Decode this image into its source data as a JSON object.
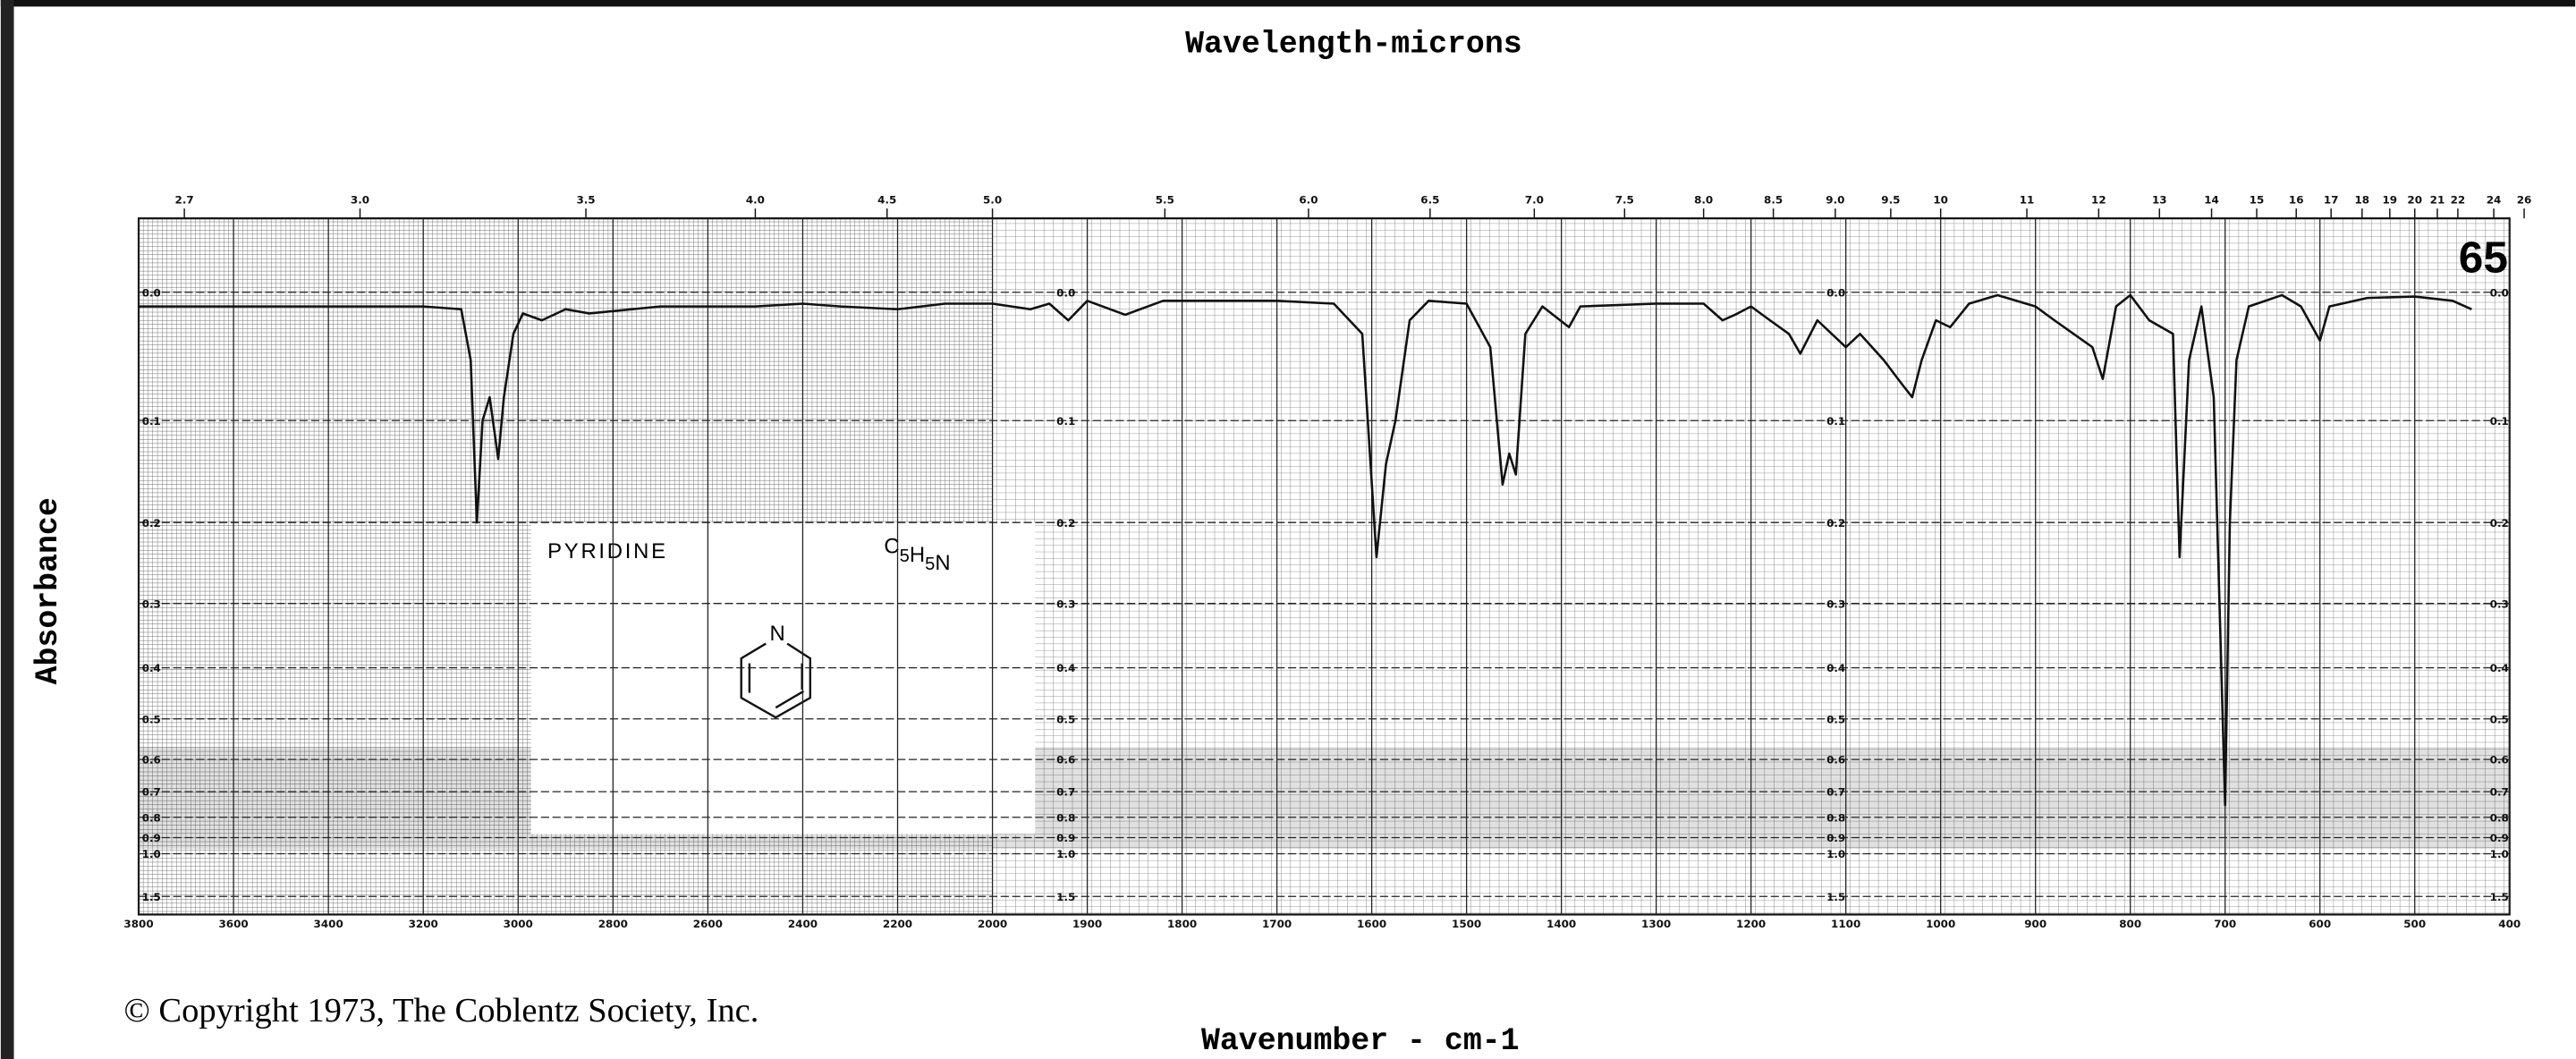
{
  "chart_data": {
    "type": "line",
    "title": "Wavelength-microns",
    "x_label": "Wavenumber - cm-1",
    "y_label": "Absorbance",
    "spectrum_number": "65",
    "compound": "PYRIDINE",
    "formula": "C5H5N",
    "structure_atom": "N",
    "copyright": "© Copyright 1973, The Coblentz Society, Inc.",
    "color": "#111111",
    "grid": true,
    "y_scale": "absorbance",
    "xlim": [
      3800,
      400
    ],
    "x_scale_change_at": 2000,
    "xticks": [
      3800,
      3600,
      3400,
      3200,
      3000,
      2800,
      2600,
      2400,
      2200,
      2000,
      1900,
      1800,
      1700,
      1600,
      1500,
      1400,
      1300,
      1200,
      1100,
      1000,
      900,
      800,
      700,
      600,
      500,
      400
    ],
    "x2ticks": [
      2.7,
      {
        "value": 3,
        "label": "3.0"
      },
      3.5,
      {
        "value": 4,
        "label": "4.0"
      },
      4.5,
      {
        "value": 5,
        "label": "5.0"
      },
      5.5,
      {
        "value": 6,
        "label": "6.0"
      },
      6.5,
      {
        "value": 7,
        "label": "7.0"
      },
      7.5,
      {
        "value": 8,
        "label": "8.0"
      },
      8.5,
      {
        "value": 9,
        "label": "9.0"
      },
      9.5,
      10,
      11,
      12,
      13,
      14,
      15,
      16,
      17,
      18,
      19,
      20,
      21,
      22,
      24,
      26
    ],
    "yticks": [
      {
        "value": 0,
        "label": "0.0"
      },
      0.1,
      0.2,
      0.3,
      0.4,
      0.5,
      0.6,
      0.7,
      0.8,
      0.9,
      {
        "value": 1,
        "label": "1.0"
      },
      1.5
    ],
    "x": [
      3800,
      3600,
      3400,
      3200,
      3120,
      3100,
      3087,
      3075,
      3060,
      3042,
      3030,
      3010,
      2990,
      2950,
      2900,
      2850,
      2700,
      2500,
      2400,
      2320,
      2200,
      2100,
      2000,
      1960,
      1940,
      1920,
      1900,
      1860,
      1820,
      1700,
      1640,
      1610,
      1595,
      1585,
      1575,
      1560,
      1540,
      1500,
      1475,
      1462,
      1455,
      1448,
      1438,
      1420,
      1392,
      1380,
      1300,
      1250,
      1230,
      1217,
      1200,
      1180,
      1160,
      1148,
      1130,
      1100,
      1085,
      1060,
      1040,
      1030,
      1020,
      1005,
      990,
      970,
      940,
      900,
      880,
      840,
      829,
      815,
      800,
      780,
      755,
      748,
      738,
      725,
      712,
      700,
      695,
      688,
      675,
      640,
      620,
      600,
      590,
      550,
      500,
      460,
      440
    ],
    "values": [
      0.01,
      0.01,
      0.01,
      0.01,
      0.012,
      0.05,
      0.2,
      0.1,
      0.08,
      0.135,
      0.08,
      0.03,
      0.015,
      0.02,
      0.012,
      0.015,
      0.01,
      0.01,
      0.008,
      0.01,
      0.012,
      0.008,
      0.008,
      0.012,
      0.008,
      0.02,
      0.006,
      0.016,
      0.006,
      0.006,
      0.008,
      0.03,
      0.24,
      0.14,
      0.1,
      0.02,
      0.006,
      0.008,
      0.04,
      0.16,
      0.13,
      0.15,
      0.03,
      0.01,
      0.025,
      0.01,
      0.008,
      0.008,
      0.02,
      0.016,
      0.01,
      0.02,
      0.03,
      0.045,
      0.02,
      0.04,
      0.03,
      0.05,
      0.07,
      0.08,
      0.05,
      0.02,
      0.025,
      0.008,
      0.002,
      0.01,
      0.02,
      0.04,
      0.065,
      0.01,
      0.002,
      0.02,
      0.03,
      0.24,
      0.05,
      0.01,
      0.08,
      0.75,
      0.2,
      0.05,
      0.01,
      0.002,
      0.01,
      0.035,
      0.01,
      0.004,
      0.003,
      0.006,
      0.012
    ]
  }
}
